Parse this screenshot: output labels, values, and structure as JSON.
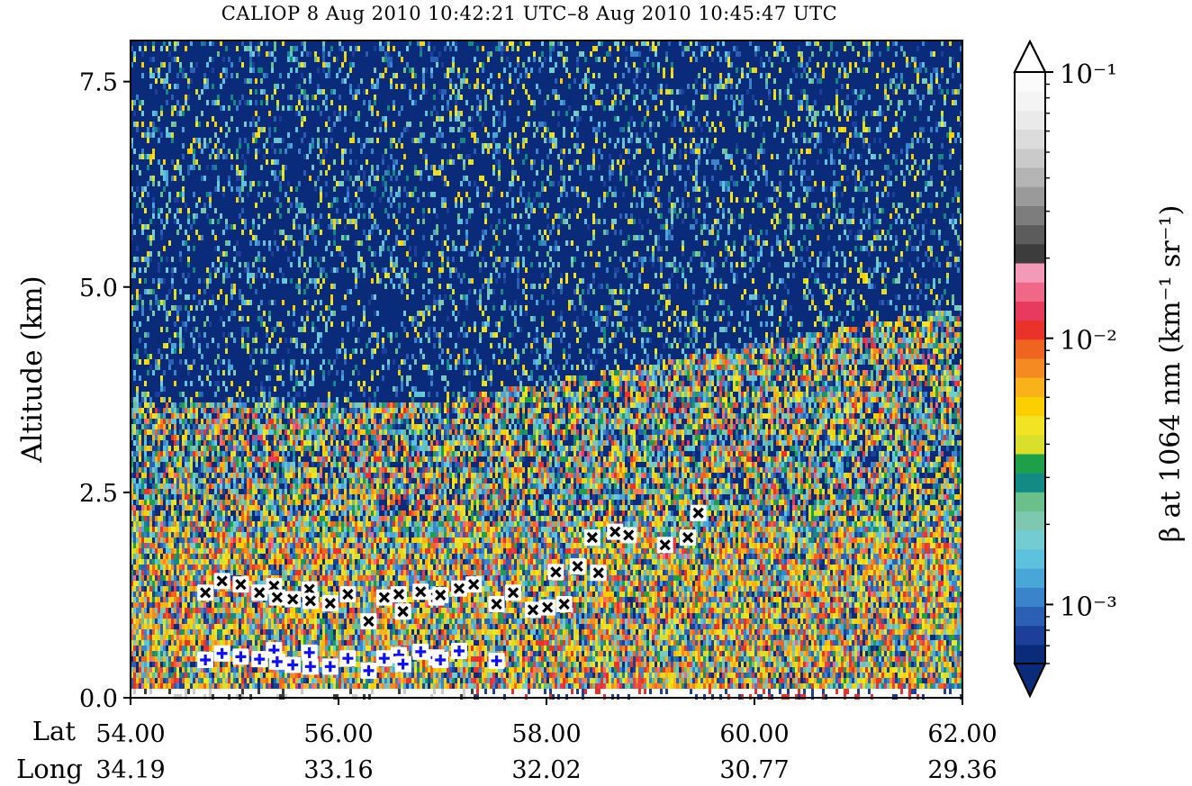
{
  "chart_data": {
    "type": "heatmap",
    "title": "CALIOP 8 Aug 2010 10:42:21 UTC–8 Aug 2010 10:45:47 UTC",
    "ylabel": "Altitude (km)",
    "colorbar_label": "β at 1064 nm (km⁻¹ sr⁻¹)",
    "colorbar_scale": "log",
    "colorbar_range": [
      0.0006,
      0.1
    ],
    "colorbar_ticks": [
      {
        "value": 0.1,
        "label": "10⁻¹"
      },
      {
        "value": 0.01,
        "label": "10⁻²"
      },
      {
        "value": 0.001,
        "label": "10⁻³"
      }
    ],
    "xlim": [
      54.0,
      62.0
    ],
    "ylim": [
      0.0,
      8.0
    ],
    "x_row_labels": [
      "Lat",
      "Long"
    ],
    "x_ticks": [
      {
        "lat": 54.0,
        "lat_label": "54.00",
        "long_label": "34.19"
      },
      {
        "lat": 56.0,
        "lat_label": "56.00",
        "long_label": "33.16"
      },
      {
        "lat": 58.0,
        "lat_label": "58.00",
        "long_label": "32.02"
      },
      {
        "lat": 60.0,
        "lat_label": "60.00",
        "long_label": "30.77"
      },
      {
        "lat": 62.0,
        "lat_label": "62.00",
        "long_label": "29.36"
      }
    ],
    "y_ticks": [
      {
        "value": 0.0,
        "label": "0.0"
      },
      {
        "value": 2.5,
        "label": "2.5"
      },
      {
        "value": 5.0,
        "label": "5.0"
      },
      {
        "value": 7.5,
        "label": "7.5"
      }
    ],
    "colormap": [
      "#0a2a7a",
      "#1c3f9a",
      "#2b5fb4",
      "#3a84cc",
      "#4aa6d8",
      "#5cc2de",
      "#72ccd2",
      "#7ec8b2",
      "#6bbf8a",
      "#138a84",
      "#1f9f4a",
      "#d9df2a",
      "#f2e324",
      "#fcd000",
      "#f9b21a",
      "#f58a22",
      "#ef6420",
      "#e8322a",
      "#e83a5c",
      "#ef6888",
      "#f39ab8",
      "#3c3c3c",
      "#5c5c5c",
      "#7c7c7c",
      "#9a9a9a",
      "#b4b4b4",
      "#cacaca",
      "#dcdcdc",
      "#eaeaea",
      "#f4f4f4",
      "#fbfbfb"
    ],
    "colormap_over": "#ffffff",
    "colormap_under": "#0a2a7a",
    "series": [
      {
        "marker": "x",
        "color": "#000000",
        "points": [
          [
            54.72,
            1.28
          ],
          [
            54.88,
            1.42
          ],
          [
            55.06,
            1.38
          ],
          [
            55.24,
            1.28
          ],
          [
            55.38,
            1.36
          ],
          [
            55.41,
            1.22
          ],
          [
            55.56,
            1.2
          ],
          [
            55.72,
            1.32
          ],
          [
            55.73,
            1.18
          ],
          [
            55.92,
            1.15
          ],
          [
            56.09,
            1.26
          ],
          [
            56.29,
            0.93
          ],
          [
            56.44,
            1.22
          ],
          [
            56.58,
            1.26
          ],
          [
            56.62,
            1.05
          ],
          [
            56.79,
            1.29
          ],
          [
            56.94,
            1.22
          ],
          [
            56.98,
            1.25
          ],
          [
            57.16,
            1.33
          ],
          [
            57.3,
            1.38
          ],
          [
            57.52,
            1.14
          ],
          [
            57.68,
            1.28
          ],
          [
            57.87,
            1.07
          ],
          [
            58.01,
            1.1
          ],
          [
            58.09,
            1.53
          ],
          [
            58.17,
            1.14
          ],
          [
            58.3,
            1.6
          ],
          [
            58.44,
            1.95
          ],
          [
            58.5,
            1.52
          ],
          [
            58.66,
            2.02
          ],
          [
            58.79,
            1.98
          ],
          [
            59.14,
            1.86
          ],
          [
            59.36,
            1.95
          ],
          [
            59.46,
            2.25
          ]
        ]
      },
      {
        "marker": "+",
        "color": "#1010e8",
        "points": [
          [
            54.72,
            0.46
          ],
          [
            54.88,
            0.54
          ],
          [
            55.06,
            0.5
          ],
          [
            55.24,
            0.47
          ],
          [
            55.38,
            0.58
          ],
          [
            55.41,
            0.44
          ],
          [
            55.56,
            0.4
          ],
          [
            55.72,
            0.55
          ],
          [
            55.73,
            0.38
          ],
          [
            55.92,
            0.38
          ],
          [
            56.09,
            0.48
          ],
          [
            56.29,
            0.33
          ],
          [
            56.44,
            0.48
          ],
          [
            56.58,
            0.52
          ],
          [
            56.62,
            0.41
          ],
          [
            56.79,
            0.56
          ],
          [
            56.94,
            0.49
          ],
          [
            56.98,
            0.46
          ],
          [
            57.16,
            0.57
          ],
          [
            57.52,
            0.45
          ]
        ]
      }
    ]
  }
}
